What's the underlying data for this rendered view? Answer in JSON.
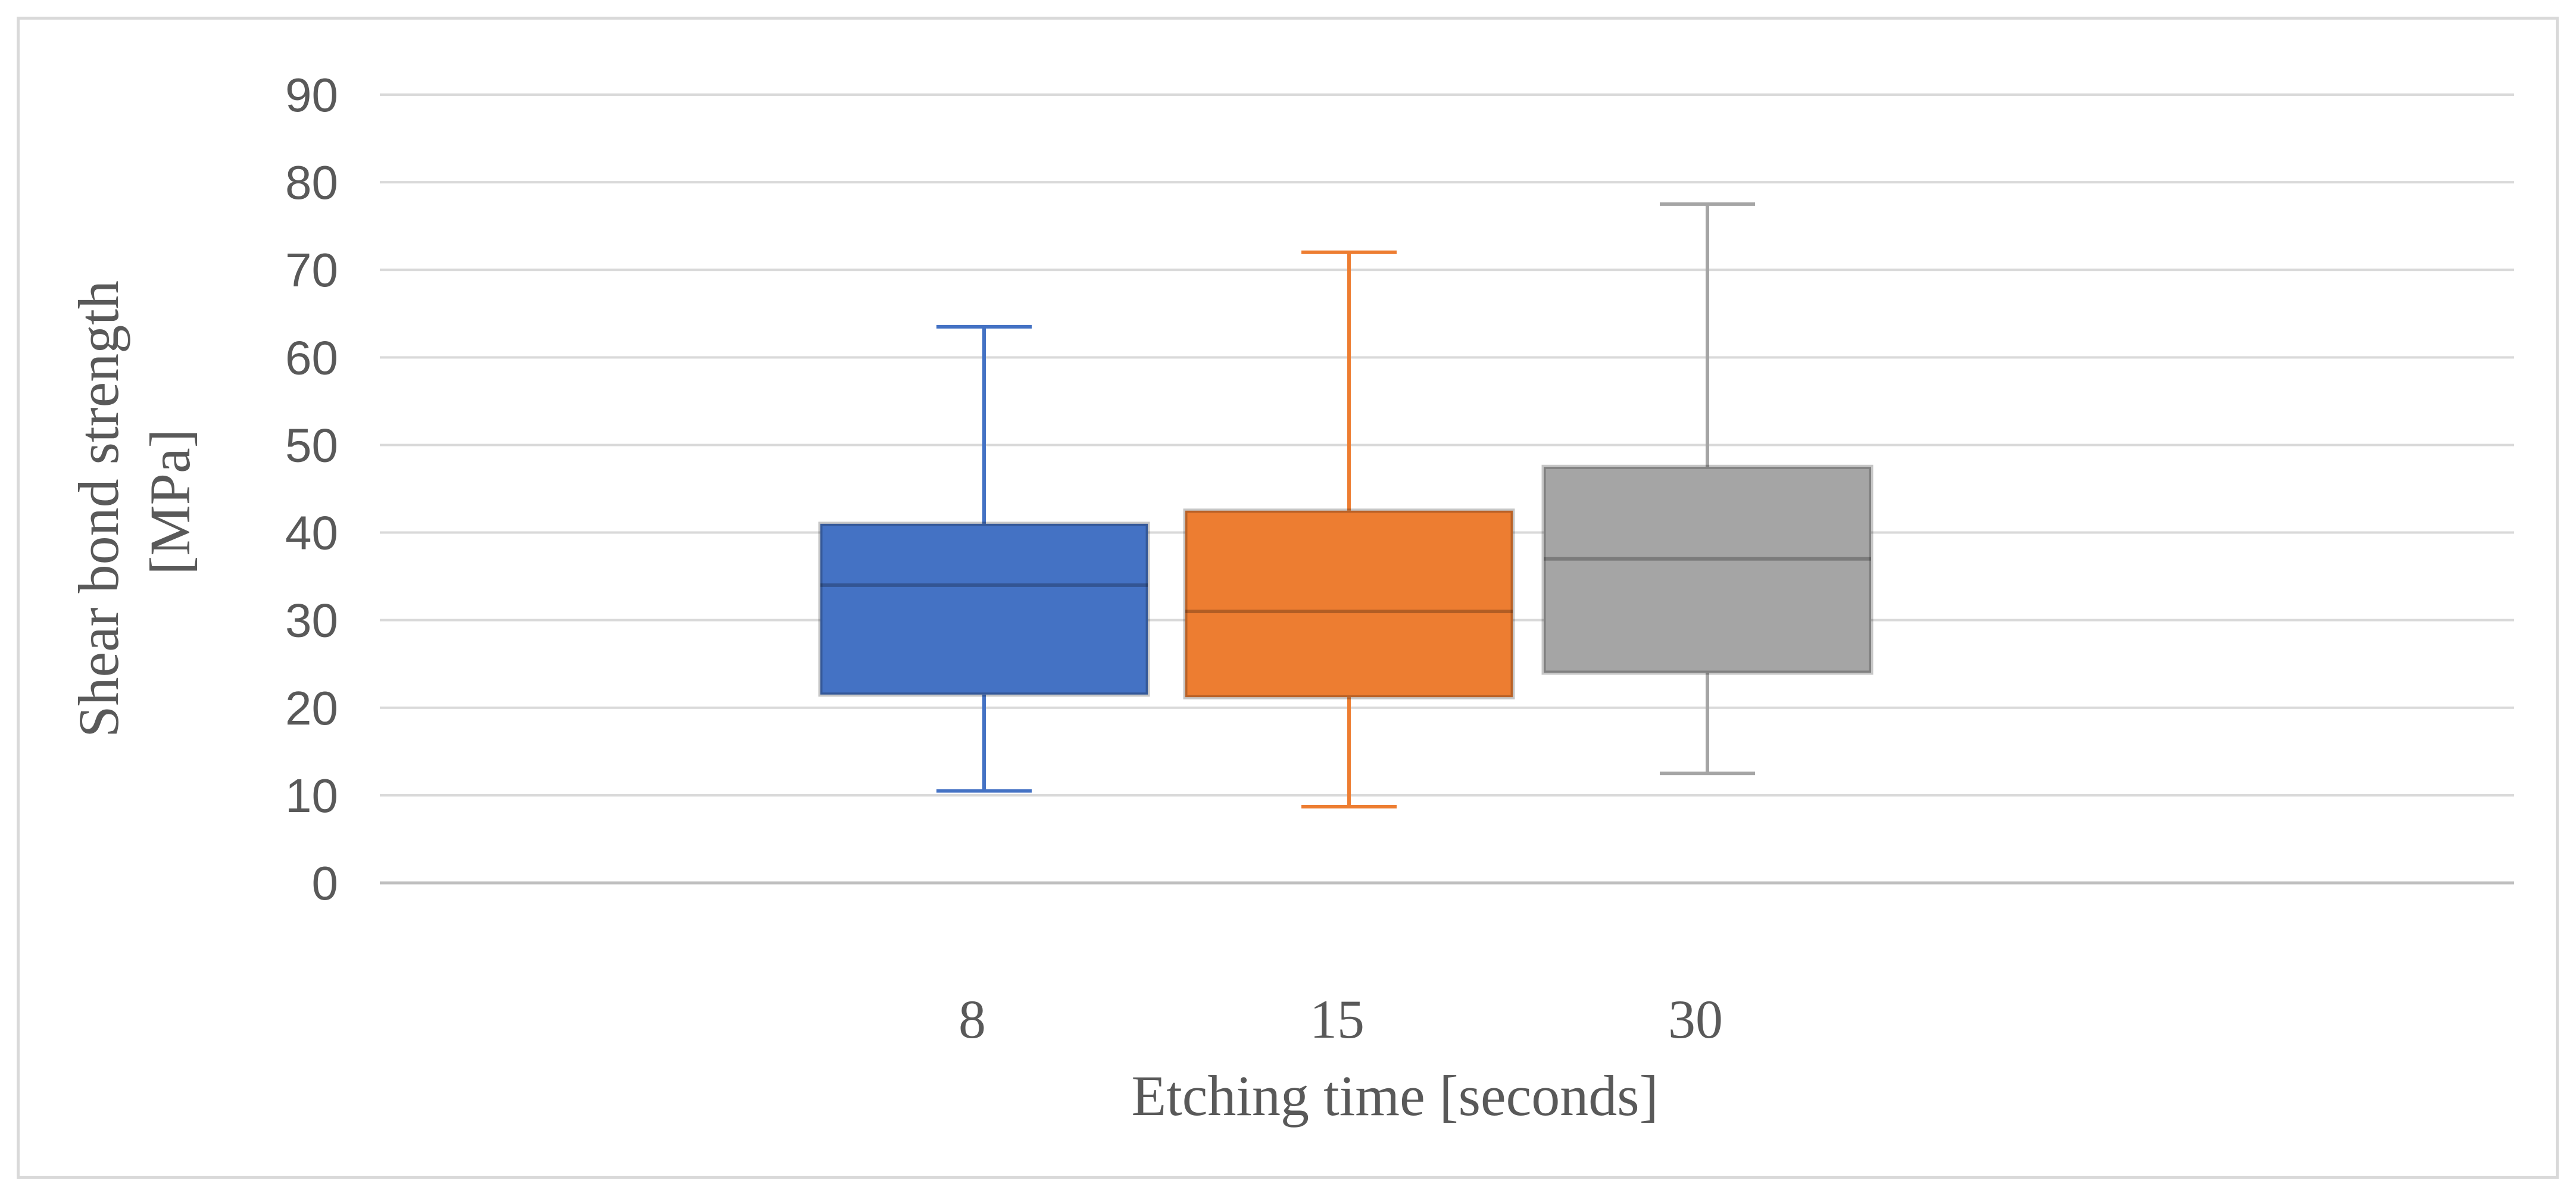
{
  "chart_data": {
    "type": "box",
    "xlabel": "Etching time [seconds]",
    "ylabel_lines": [
      "Shear bond strength",
      "[MPa]"
    ],
    "ylim": [
      0,
      90
    ],
    "yticks": [
      0,
      10,
      20,
      30,
      40,
      50,
      60,
      70,
      80,
      90
    ],
    "grid": true,
    "categories": [
      "8",
      "15",
      "30"
    ],
    "series": [
      {
        "color": "#4472c4",
        "min": 10.5,
        "q1": 21.5,
        "median": 34,
        "q3": 41,
        "max": 63.5
      },
      {
        "color": "#ed7d31",
        "min": 8.7,
        "q1": 21.2,
        "median": 31,
        "q3": 42.5,
        "max": 72
      },
      {
        "color": "#a5a5a5",
        "min": 12.5,
        "q1": 24,
        "median": 37,
        "q3": 47.5,
        "max": 77.5
      }
    ]
  }
}
